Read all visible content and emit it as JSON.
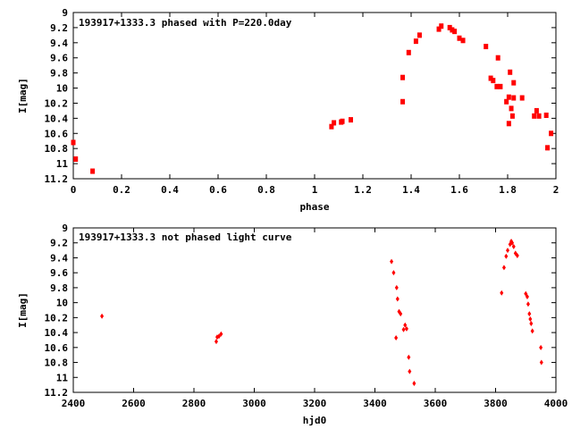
{
  "colors": {
    "points": "#ff0000",
    "axes": "#000000",
    "background": "#ffffff"
  },
  "chart_data": [
    {
      "type": "scatter",
      "title": "193917+1333.3 phased with P=220.0day",
      "xlabel": "phase",
      "ylabel": "I[mag]",
      "xlim": [
        0,
        2
      ],
      "ylim": [
        9,
        11.2
      ],
      "y_inverted": true,
      "x_ticks": [
        "0",
        "0.2",
        "0.4",
        "0.6",
        "0.8",
        "1",
        "1.2",
        "1.4",
        "1.6",
        "1.8",
        "2"
      ],
      "y_ticks": [
        "9",
        "9.2",
        "9.4",
        "9.6",
        "9.8",
        "10",
        "10.2",
        "10.4",
        "10.6",
        "10.8",
        "11",
        "11.2"
      ],
      "marker": "filled-square",
      "grid": false,
      "series": [
        {
          "points": [
            [
              0.0,
              10.72
            ],
            [
              0.01,
              10.94
            ],
            [
              0.08,
              11.1
            ],
            [
              1.07,
              10.51
            ],
            [
              1.08,
              10.46
            ],
            [
              1.11,
              10.45
            ],
            [
              1.115,
              10.44
            ],
            [
              1.15,
              10.42
            ],
            [
              1.365,
              9.86
            ],
            [
              1.365,
              10.18
            ],
            [
              1.39,
              9.53
            ],
            [
              1.42,
              9.38
            ],
            [
              1.435,
              9.3
            ],
            [
              1.515,
              9.22
            ],
            [
              1.525,
              9.18
            ],
            [
              1.56,
              9.2
            ],
            [
              1.57,
              9.23
            ],
            [
              1.58,
              9.25
            ],
            [
              1.6,
              9.34
            ],
            [
              1.615,
              9.37
            ],
            [
              1.71,
              9.45
            ],
            [
              1.73,
              9.87
            ],
            [
              1.74,
              9.9
            ],
            [
              1.755,
              9.98
            ],
            [
              1.76,
              9.6
            ],
            [
              1.77,
              9.98
            ],
            [
              1.795,
              10.18
            ],
            [
              1.805,
              10.12
            ],
            [
              1.805,
              10.47
            ],
            [
              1.81,
              9.79
            ],
            [
              1.815,
              10.27
            ],
            [
              1.82,
              10.37
            ],
            [
              1.825,
              9.93
            ],
            [
              1.825,
              10.13
            ],
            [
              1.86,
              10.13
            ],
            [
              1.91,
              10.37
            ],
            [
              1.92,
              10.3
            ],
            [
              1.93,
              10.37
            ],
            [
              1.96,
              10.36
            ],
            [
              1.965,
              10.79
            ],
            [
              1.98,
              10.6
            ]
          ]
        }
      ]
    },
    {
      "type": "scatter",
      "title": "193917+1333.3 not phased light curve",
      "xlabel": "hjd0",
      "ylabel": "I[mag]",
      "xlim": [
        2400,
        4000
      ],
      "ylim": [
        9,
        11.2
      ],
      "y_inverted": true,
      "x_ticks": [
        "2400",
        "2600",
        "2800",
        "3000",
        "3200",
        "3400",
        "3600",
        "3800",
        "4000"
      ],
      "y_ticks": [
        "9",
        "9.2",
        "9.4",
        "9.6",
        "9.8",
        "10",
        "10.2",
        "10.4",
        "10.6",
        "10.8",
        "11",
        "11.2"
      ],
      "marker": "small-diamond",
      "grid": false,
      "series": [
        {
          "points": [
            [
              2495,
              10.18
            ],
            [
              2874,
              10.52
            ],
            [
              2877,
              10.46
            ],
            [
              2883,
              10.45
            ],
            [
              2890,
              10.42
            ],
            [
              3455,
              9.45
            ],
            [
              3462,
              9.6
            ],
            [
              3472,
              9.8
            ],
            [
              3475,
              9.95
            ],
            [
              3470,
              10.47
            ],
            [
              3480,
              10.12
            ],
            [
              3485,
              10.15
            ],
            [
              3495,
              10.36
            ],
            [
              3500,
              10.3
            ],
            [
              3505,
              10.35
            ],
            [
              3512,
              10.73
            ],
            [
              3515,
              10.92
            ],
            [
              3530,
              11.08
            ],
            [
              3820,
              9.87
            ],
            [
              3828,
              9.53
            ],
            [
              3835,
              9.38
            ],
            [
              3840,
              9.3
            ],
            [
              3848,
              9.22
            ],
            [
              3852,
              9.18
            ],
            [
              3855,
              9.2
            ],
            [
              3860,
              9.25
            ],
            [
              3866,
              9.34
            ],
            [
              3872,
              9.37
            ],
            [
              3900,
              9.88
            ],
            [
              3905,
              9.92
            ],
            [
              3908,
              10.02
            ],
            [
              3912,
              10.15
            ],
            [
              3915,
              10.22
            ],
            [
              3918,
              10.28
            ],
            [
              3922,
              10.38
            ],
            [
              3950,
              10.6
            ],
            [
              3952,
              10.8
            ]
          ]
        }
      ]
    }
  ]
}
